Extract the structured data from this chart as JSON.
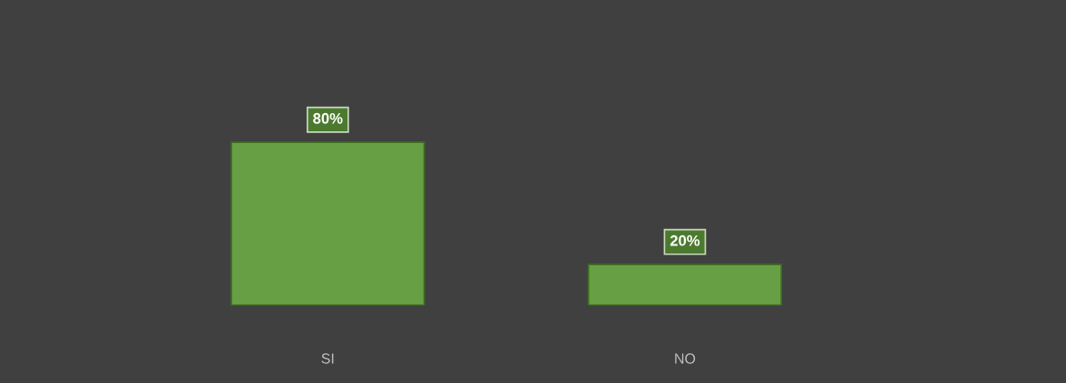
{
  "chart_data": {
    "type": "bar",
    "categories": [
      "SI",
      "NO"
    ],
    "values": [
      80,
      20
    ],
    "color": "#67a044",
    "value_labels": [
      "80%",
      "20%"
    ]
  }
}
